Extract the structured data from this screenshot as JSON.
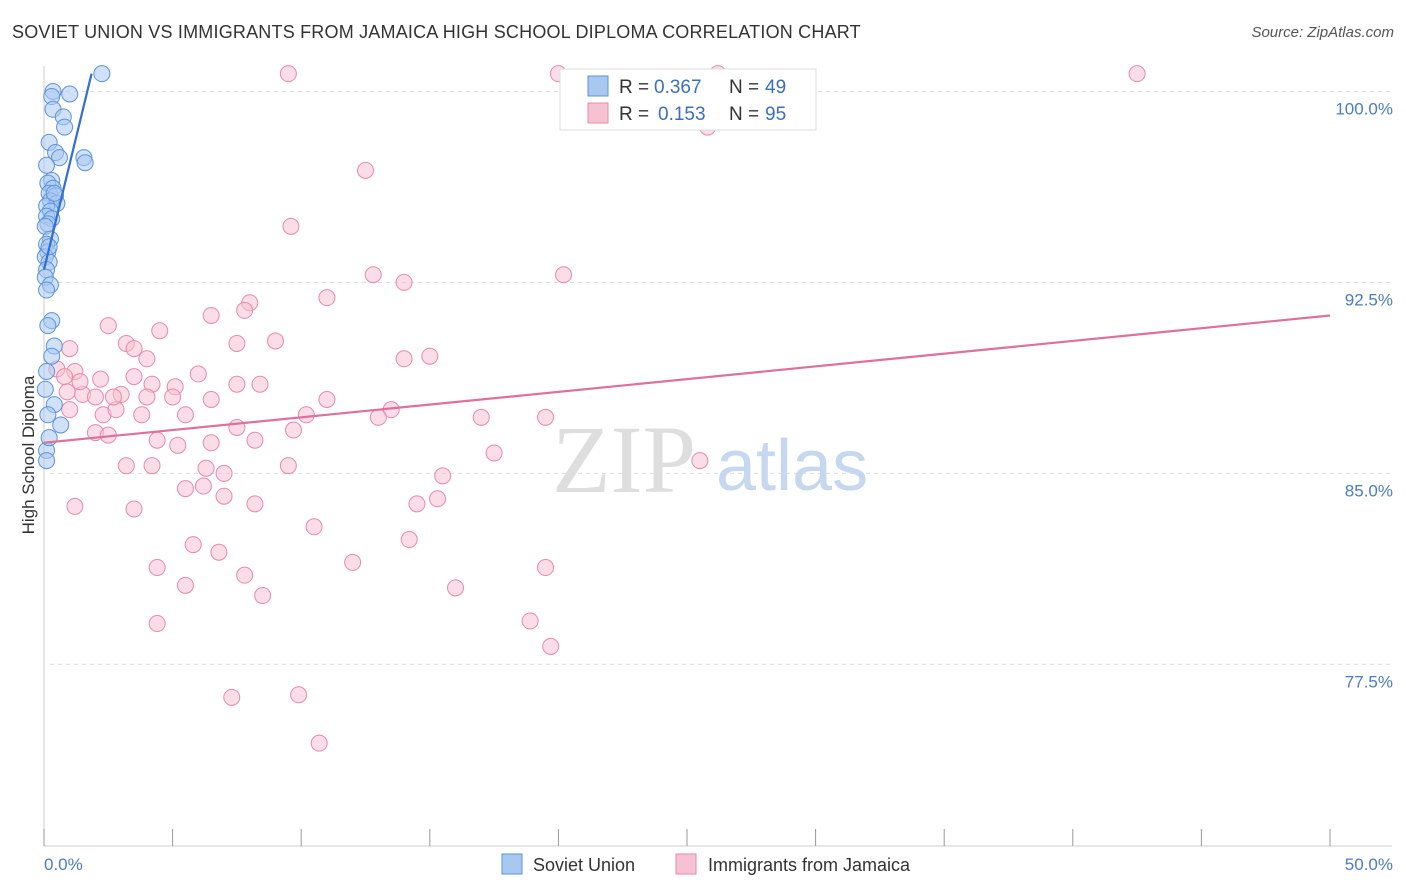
{
  "header": {
    "title": "SOVIET UNION VS IMMIGRANTS FROM JAMAICA HIGH SCHOOL DIPLOMA CORRELATION CHART",
    "source": "Source: ZipAtlas.com"
  },
  "watermark": {
    "zip": "ZIP",
    "atlas": "atlas"
  },
  "colors": {
    "soviet": "#5b93e0",
    "soviet_fill": "#a9c8f0",
    "soviet_line": "#2f6fd6",
    "jamaica": "#ea8aa9",
    "jamaica_fill": "#f6c1d1",
    "jamaica_line": "#e07099",
    "grid": "#dcdcdc",
    "axis_tick": "#4a7cc7"
  },
  "legend": {
    "rows": [
      {
        "r_label": "R =",
        "r_value": "0.367",
        "n_label": "N =",
        "n_value": "49"
      },
      {
        "r_label": "R =",
        "r_value": "0.153",
        "n_label": "N =",
        "n_value": "95"
      }
    ]
  },
  "bottom_legend": [
    "Soviet Union",
    "Immigrants from Jamaica"
  ],
  "chart_data": {
    "type": "scatter",
    "title": "SOVIET UNION VS IMMIGRANTS FROM JAMAICA HIGH SCHOOL DIPLOMA CORRELATION CHART",
    "xlabel": "",
    "ylabel": "High School Diploma",
    "xlim": [
      0,
      50
    ],
    "ylim": [
      70.4,
      101.0
    ],
    "x_tick_labels": [
      "0.0%",
      "50.0%"
    ],
    "y_ticks": [
      77.5,
      85.0,
      92.5,
      100.0
    ],
    "y_tick_labels": [
      "77.5%",
      "85.0%",
      "92.5%",
      "100.0%"
    ],
    "grid": true,
    "series": [
      {
        "name": "Soviet Union",
        "r": 0.367,
        "n": 49,
        "trend": {
          "x0": 0.0,
          "y0": 93.0,
          "x1": 1.85,
          "y1": 100.7
        },
        "points": [
          [
            2.25,
            100.7
          ],
          [
            0.35,
            100.0
          ],
          [
            1.0,
            99.9
          ],
          [
            0.3,
            99.8
          ],
          [
            0.35,
            99.3
          ],
          [
            0.75,
            99.0
          ],
          [
            0.8,
            98.6
          ],
          [
            0.2,
            98.0
          ],
          [
            0.45,
            97.6
          ],
          [
            0.6,
            97.4
          ],
          [
            1.55,
            97.4
          ],
          [
            1.6,
            97.2
          ],
          [
            0.1,
            97.1
          ],
          [
            0.3,
            96.5
          ],
          [
            0.15,
            96.4
          ],
          [
            0.35,
            96.2
          ],
          [
            0.2,
            96.0
          ],
          [
            0.45,
            95.9
          ],
          [
            0.25,
            95.7
          ],
          [
            0.5,
            95.6
          ],
          [
            0.1,
            95.5
          ],
          [
            0.25,
            95.3
          ],
          [
            0.1,
            95.1
          ],
          [
            0.3,
            95.0
          ],
          [
            0.15,
            94.8
          ],
          [
            0.05,
            94.7
          ],
          [
            0.25,
            94.2
          ],
          [
            0.1,
            94.0
          ],
          [
            0.15,
            93.7
          ],
          [
            0.05,
            93.5
          ],
          [
            0.2,
            93.3
          ],
          [
            0.1,
            93.0
          ],
          [
            0.05,
            92.7
          ],
          [
            0.25,
            92.4
          ],
          [
            0.1,
            92.2
          ],
          [
            0.3,
            91.0
          ],
          [
            0.15,
            90.8
          ],
          [
            0.4,
            90.0
          ],
          [
            0.1,
            89.0
          ],
          [
            0.05,
            88.3
          ],
          [
            0.4,
            87.7
          ],
          [
            0.15,
            87.3
          ],
          [
            0.65,
            86.9
          ],
          [
            0.1,
            85.9
          ],
          [
            0.1,
            85.5
          ],
          [
            0.2,
            86.4
          ],
          [
            0.3,
            89.6
          ],
          [
            0.2,
            93.9
          ],
          [
            0.4,
            96.0
          ]
        ]
      },
      {
        "name": "Immigrants from Jamaica",
        "r": 0.153,
        "n": 95,
        "trend": {
          "x0": 0.0,
          "y0": 86.2,
          "x1": 50.0,
          "y1": 91.2
        },
        "points": [
          [
            9.5,
            100.7
          ],
          [
            20.0,
            100.7
          ],
          [
            42.5,
            100.7
          ],
          [
            25.8,
            98.6
          ],
          [
            12.5,
            96.9
          ],
          [
            9.6,
            94.7
          ],
          [
            20.2,
            92.8
          ],
          [
            14.0,
            92.5
          ],
          [
            11.0,
            91.9
          ],
          [
            8.0,
            91.7
          ],
          [
            7.8,
            91.4
          ],
          [
            6.5,
            91.2
          ],
          [
            2.5,
            90.8
          ],
          [
            3.2,
            90.1
          ],
          [
            4.5,
            90.6
          ],
          [
            7.5,
            90.1
          ],
          [
            9.0,
            90.2
          ],
          [
            3.5,
            89.9
          ],
          [
            1.0,
            89.9
          ],
          [
            4.0,
            89.5
          ],
          [
            14.0,
            89.5
          ],
          [
            15.0,
            89.6
          ],
          [
            0.5,
            89.1
          ],
          [
            1.2,
            89.0
          ],
          [
            0.8,
            88.8
          ],
          [
            2.2,
            88.7
          ],
          [
            6.0,
            88.9
          ],
          [
            7.5,
            88.5
          ],
          [
            3.5,
            88.8
          ],
          [
            4.2,
            88.5
          ],
          [
            5.1,
            88.4
          ],
          [
            8.4,
            88.5
          ],
          [
            1.5,
            88.1
          ],
          [
            2.0,
            88.0
          ],
          [
            3.0,
            88.1
          ],
          [
            4.0,
            88.0
          ],
          [
            5.0,
            88.0
          ],
          [
            6.5,
            87.9
          ],
          [
            11.0,
            87.9
          ],
          [
            13.5,
            87.5
          ],
          [
            1.0,
            87.5
          ],
          [
            2.3,
            87.3
          ],
          [
            2.8,
            87.5
          ],
          [
            3.8,
            87.3
          ],
          [
            5.5,
            87.3
          ],
          [
            10.2,
            87.3
          ],
          [
            13.0,
            87.2
          ],
          [
            17.0,
            87.2
          ],
          [
            19.5,
            87.2
          ],
          [
            2.0,
            86.6
          ],
          [
            2.5,
            86.5
          ],
          [
            4.4,
            86.3
          ],
          [
            5.2,
            86.1
          ],
          [
            6.5,
            86.2
          ],
          [
            7.5,
            86.8
          ],
          [
            8.2,
            86.3
          ],
          [
            9.7,
            86.7
          ],
          [
            17.5,
            85.8
          ],
          [
            25.5,
            85.5
          ],
          [
            3.2,
            85.3
          ],
          [
            4.2,
            85.3
          ],
          [
            6.3,
            85.2
          ],
          [
            7.0,
            85.0
          ],
          [
            9.5,
            85.3
          ],
          [
            15.5,
            84.9
          ],
          [
            5.5,
            84.4
          ],
          [
            6.2,
            84.5
          ],
          [
            7.0,
            84.1
          ],
          [
            8.2,
            83.8
          ],
          [
            1.2,
            83.7
          ],
          [
            3.5,
            83.6
          ],
          [
            14.5,
            83.8
          ],
          [
            15.3,
            84.0
          ],
          [
            10.5,
            82.9
          ],
          [
            14.2,
            82.4
          ],
          [
            5.8,
            82.2
          ],
          [
            6.8,
            81.9
          ],
          [
            12.0,
            81.5
          ],
          [
            4.4,
            81.3
          ],
          [
            19.5,
            81.3
          ],
          [
            7.8,
            81.0
          ],
          [
            5.5,
            80.6
          ],
          [
            16.0,
            80.5
          ],
          [
            8.5,
            80.2
          ],
          [
            4.4,
            79.1
          ],
          [
            18.9,
            79.2
          ],
          [
            19.7,
            78.2
          ],
          [
            7.3,
            76.2
          ],
          [
            9.9,
            76.3
          ],
          [
            10.7,
            74.4
          ],
          [
            26.2,
            100.7
          ],
          [
            0.9,
            88.2
          ],
          [
            1.4,
            88.6
          ],
          [
            2.7,
            88.0
          ],
          [
            12.8,
            92.8
          ]
        ]
      }
    ]
  }
}
